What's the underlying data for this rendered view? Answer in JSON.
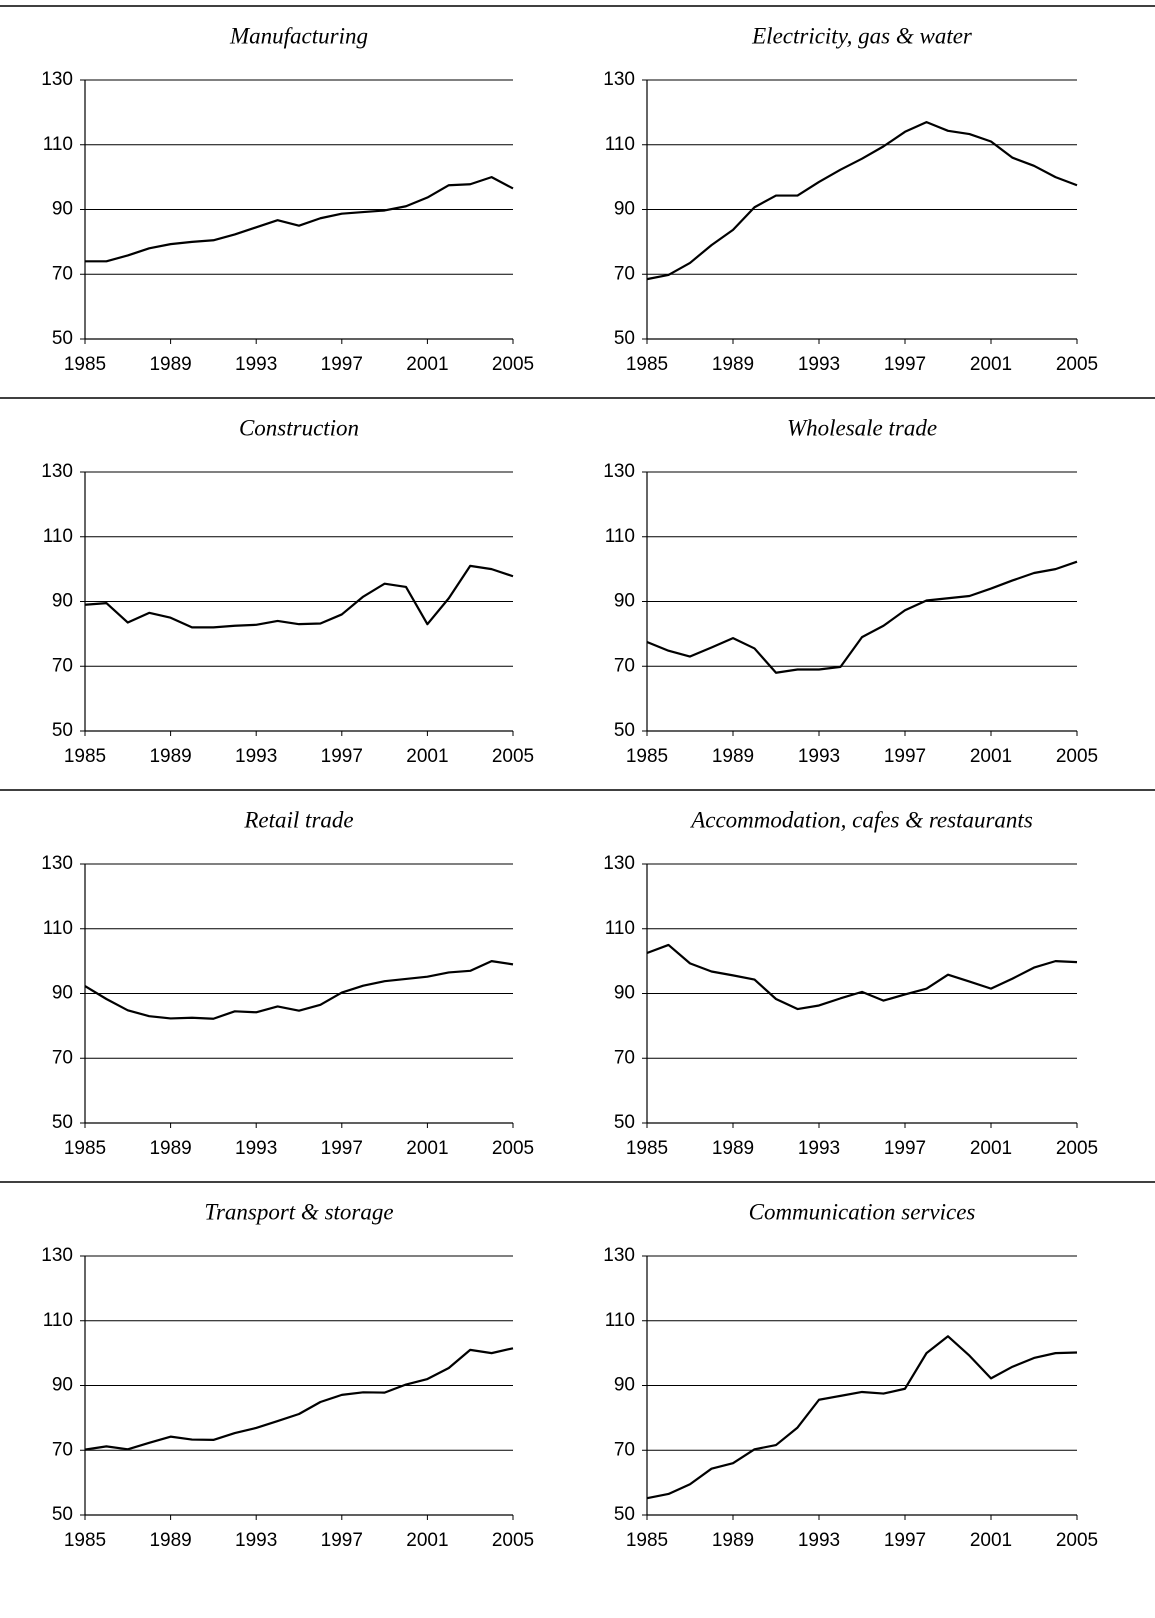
{
  "chart_data": [
    {
      "type": "line",
      "title": "Manufacturing",
      "color": "#000000",
      "grid": true,
      "x": [
        1985,
        1986,
        1987,
        1988,
        1989,
        1990,
        1991,
        1992,
        1993,
        1994,
        1995,
        1996,
        1997,
        1998,
        1999,
        2000,
        2001,
        2002,
        2003,
        2004,
        2005
      ],
      "values": [
        74,
        74,
        75.8,
        78,
        79.3,
        80,
        80.5,
        82.3,
        84.5,
        86.7,
        85,
        87.3,
        88.7,
        89.2,
        89.7,
        91,
        93.7,
        97.5,
        97.8,
        100,
        96.5
      ],
      "xlim": [
        1985,
        2005
      ],
      "xticks": [
        1985,
        1989,
        1993,
        1997,
        2001,
        2005
      ],
      "ylim": [
        50,
        130
      ],
      "yticks": [
        50,
        70,
        90,
        110,
        130
      ]
    },
    {
      "type": "line",
      "title": "Electricity, gas & water",
      "color": "#000000",
      "grid": true,
      "x": [
        1985,
        1986,
        1987,
        1988,
        1989,
        1990,
        1991,
        1992,
        1993,
        1994,
        1995,
        1996,
        1997,
        1998,
        1999,
        2000,
        2001,
        2002,
        2003,
        2004,
        2005
      ],
      "values": [
        68.5,
        69.8,
        73.5,
        79,
        83.7,
        90.7,
        94.3,
        94.3,
        98.5,
        102.3,
        105.7,
        109.5,
        114,
        117,
        114.3,
        113.3,
        111,
        106,
        103.5,
        100,
        97.5
      ],
      "xlim": [
        1985,
        2005
      ],
      "xticks": [
        1985,
        1989,
        1993,
        1997,
        2001,
        2005
      ],
      "ylim": [
        50,
        130
      ],
      "yticks": [
        50,
        70,
        90,
        110,
        130
      ]
    },
    {
      "type": "line",
      "title": "Construction",
      "color": "#000000",
      "grid": true,
      "x": [
        1985,
        1986,
        1987,
        1988,
        1989,
        1990,
        1991,
        1992,
        1993,
        1994,
        1995,
        1996,
        1997,
        1998,
        1999,
        2000,
        2001,
        2002,
        2003,
        2004,
        2005
      ],
      "values": [
        89,
        89.5,
        83.5,
        86.5,
        85,
        82,
        82,
        82.5,
        82.8,
        84,
        83,
        83.2,
        86,
        91.5,
        95.5,
        94.5,
        83,
        91,
        101,
        100,
        97.8
      ],
      "xlim": [
        1985,
        2005
      ],
      "xticks": [
        1985,
        1989,
        1993,
        1997,
        2001,
        2005
      ],
      "ylim": [
        50,
        130
      ],
      "yticks": [
        50,
        70,
        90,
        110,
        130
      ]
    },
    {
      "type": "line",
      "title": "Wholesale trade",
      "color": "#000000",
      "grid": true,
      "x": [
        1985,
        1986,
        1987,
        1988,
        1989,
        1990,
        1991,
        1992,
        1993,
        1994,
        1995,
        1996,
        1997,
        1998,
        1999,
        2000,
        2001,
        2002,
        2003,
        2004,
        2005
      ],
      "values": [
        77.5,
        74.8,
        73,
        75.8,
        78.7,
        75.5,
        68,
        69,
        69,
        69.8,
        79,
        82.5,
        87.3,
        90.3,
        91,
        91.7,
        94,
        96.5,
        98.8,
        100,
        102.3
      ],
      "xlim": [
        1985,
        2005
      ],
      "xticks": [
        1985,
        1989,
        1993,
        1997,
        2001,
        2005
      ],
      "ylim": [
        50,
        130
      ],
      "yticks": [
        50,
        70,
        90,
        110,
        130
      ]
    },
    {
      "type": "line",
      "title": "Retail trade",
      "color": "#000000",
      "grid": true,
      "x": [
        1985,
        1986,
        1987,
        1988,
        1989,
        1990,
        1991,
        1992,
        1993,
        1994,
        1995,
        1996,
        1997,
        1998,
        1999,
        2000,
        2001,
        2002,
        2003,
        2004,
        2005
      ],
      "values": [
        92.3,
        88.3,
        84.8,
        83,
        82.3,
        82.5,
        82.2,
        84.5,
        84.2,
        86,
        84.7,
        86.5,
        90.3,
        92.4,
        93.8,
        94.5,
        95.2,
        96.5,
        97,
        100,
        99
      ],
      "xlim": [
        1985,
        2005
      ],
      "xticks": [
        1985,
        1989,
        1993,
        1997,
        2001,
        2005
      ],
      "ylim": [
        50,
        130
      ],
      "yticks": [
        50,
        70,
        90,
        110,
        130
      ]
    },
    {
      "type": "line",
      "title": "Accommodation, cafes & restaurants",
      "color": "#000000",
      "grid": true,
      "x": [
        1985,
        1986,
        1987,
        1988,
        1989,
        1990,
        1991,
        1992,
        1993,
        1994,
        1995,
        1996,
        1997,
        1998,
        1999,
        2000,
        2001,
        2002,
        2003,
        2004,
        2005
      ],
      "values": [
        102.5,
        105,
        99.3,
        96.8,
        95.6,
        94.3,
        88.3,
        85.2,
        86.3,
        88.5,
        90.5,
        87.8,
        89.7,
        91.5,
        95.8,
        93.7,
        91.5,
        94.6,
        98,
        100,
        99.7
      ],
      "xlim": [
        1985,
        2005
      ],
      "xticks": [
        1985,
        1989,
        1993,
        1997,
        2001,
        2005
      ],
      "ylim": [
        50,
        130
      ],
      "yticks": [
        50,
        70,
        90,
        110,
        130
      ]
    },
    {
      "type": "line",
      "title": "Transport & storage",
      "color": "#000000",
      "grid": true,
      "x": [
        1985,
        1986,
        1987,
        1988,
        1989,
        1990,
        1991,
        1992,
        1993,
        1994,
        1995,
        1996,
        1997,
        1998,
        1999,
        2000,
        2001,
        2002,
        2003,
        2004,
        2005
      ],
      "values": [
        70.2,
        71.2,
        70.3,
        72.3,
        74.2,
        73.3,
        73.2,
        75.3,
        76.9,
        79,
        81.2,
        84.9,
        87.1,
        87.9,
        87.8,
        90.3,
        92,
        95.4,
        101,
        100,
        101.5
      ],
      "xlim": [
        1985,
        2005
      ],
      "xticks": [
        1985,
        1989,
        1993,
        1997,
        2001,
        2005
      ],
      "ylim": [
        50,
        130
      ],
      "yticks": [
        50,
        70,
        90,
        110,
        130
      ]
    },
    {
      "type": "line",
      "title": "Communication services",
      "color": "#000000",
      "grid": true,
      "x": [
        1985,
        1986,
        1987,
        1988,
        1989,
        1990,
        1991,
        1992,
        1993,
        1994,
        1995,
        1996,
        1997,
        1998,
        1999,
        2000,
        2001,
        2002,
        2003,
        2004,
        2005
      ],
      "values": [
        55.2,
        56.5,
        59.5,
        64.3,
        66,
        70.3,
        71.6,
        77,
        85.6,
        86.8,
        88,
        87.5,
        89,
        100,
        105.2,
        99.2,
        92.2,
        95.8,
        98.5,
        100,
        100.2
      ],
      "xlim": [
        1985,
        2005
      ],
      "xticks": [
        1985,
        1989,
        1993,
        1997,
        2001,
        2005
      ],
      "ylim": [
        50,
        130
      ],
      "yticks": [
        50,
        70,
        90,
        110,
        130
      ]
    }
  ]
}
